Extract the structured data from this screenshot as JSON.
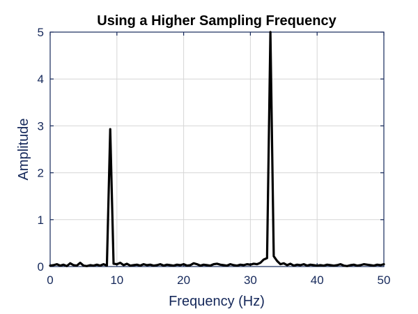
{
  "chart_data": {
    "type": "line",
    "title": "Using a Higher Sampling Frequency",
    "xlabel": "Frequency (Hz)",
    "ylabel": "Amplitude",
    "xlim": [
      0,
      50
    ],
    "ylim": [
      0,
      5
    ],
    "xticks": [
      0,
      10,
      20,
      30,
      40,
      50
    ],
    "yticks": [
      0,
      1,
      2,
      3,
      4,
      5
    ],
    "grid": true,
    "colors": {
      "axis": "#15285a",
      "line": "#000000",
      "grid": "#d6d6d6"
    },
    "series": [
      {
        "x": [
          0,
          0.5,
          1,
          1.5,
          2,
          2.5,
          3,
          3.5,
          4,
          4.5,
          5,
          5.5,
          6,
          6.5,
          7,
          7.5,
          8,
          8.5,
          9,
          9.5,
          10,
          10.5,
          11,
          11.5,
          12,
          12.5,
          13,
          13.5,
          14,
          14.5,
          15,
          15.5,
          16,
          16.5,
          17,
          17.5,
          18,
          18.5,
          19,
          19.5,
          20,
          20.5,
          21,
          21.5,
          22,
          22.5,
          23,
          23.5,
          24,
          24.5,
          25,
          25.5,
          26,
          26.5,
          27,
          27.5,
          28,
          28.5,
          29,
          29.5,
          30,
          30.5,
          31,
          31.5,
          32,
          32.5,
          33,
          33.5,
          34,
          34.5,
          35,
          35.5,
          36,
          36.5,
          37,
          37.5,
          38,
          38.5,
          39,
          39.5,
          40,
          40.5,
          41,
          41.5,
          42,
          42.5,
          43,
          43.5,
          44,
          44.5,
          45,
          45.5,
          46,
          46.5,
          47,
          47.5,
          48,
          48.5,
          49,
          49.5,
          50
        ],
        "y": [
          0.02,
          0.03,
          0.05,
          0.02,
          0.04,
          0.01,
          0.07,
          0.03,
          0.02,
          0.08,
          0.02,
          0.01,
          0.03,
          0.02,
          0.04,
          0.02,
          0.05,
          0.02,
          2.93,
          0.06,
          0.05,
          0.08,
          0.03,
          0.06,
          0.02,
          0.03,
          0.04,
          0.02,
          0.05,
          0.03,
          0.04,
          0.02,
          0.03,
          0.05,
          0.02,
          0.04,
          0.03,
          0.02,
          0.04,
          0.03,
          0.05,
          0.02,
          0.03,
          0.07,
          0.05,
          0.02,
          0.04,
          0.03,
          0.02,
          0.05,
          0.06,
          0.04,
          0.03,
          0.02,
          0.05,
          0.03,
          0.02,
          0.04,
          0.03,
          0.05,
          0.04,
          0.06,
          0.05,
          0.08,
          0.15,
          0.18,
          5.0,
          0.22,
          0.12,
          0.05,
          0.07,
          0.03,
          0.06,
          0.02,
          0.04,
          0.03,
          0.05,
          0.02,
          0.04,
          0.03,
          0.02,
          0.03,
          0.02,
          0.04,
          0.03,
          0.02,
          0.03,
          0.05,
          0.02,
          0.01,
          0.03,
          0.04,
          0.02,
          0.03,
          0.05,
          0.04,
          0.03,
          0.02,
          0.04,
          0.03,
          0.05
        ]
      }
    ]
  }
}
